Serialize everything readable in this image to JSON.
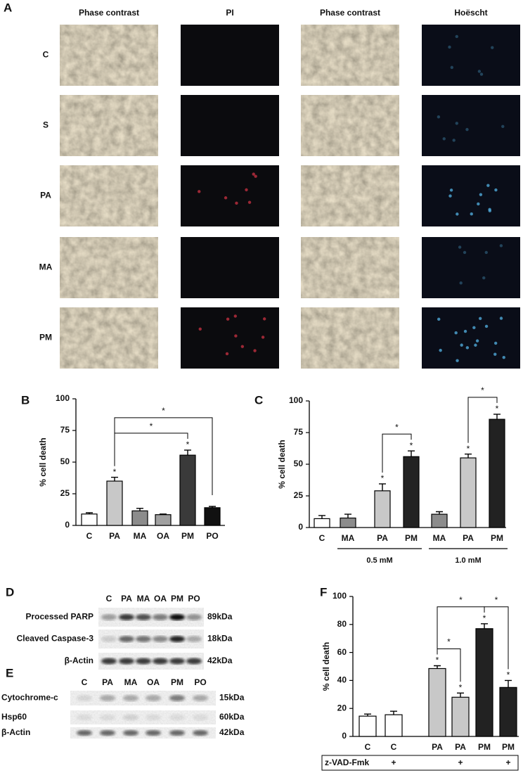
{
  "panel_a": {
    "label": "A",
    "columns": [
      "Phase contrast",
      "PI",
      "Phase contrast",
      "Hoëscht"
    ],
    "rows": [
      "C",
      "S",
      "PA",
      "MA",
      "PM"
    ]
  },
  "chart_data": [
    {
      "type": "bar",
      "panel": "B",
      "ylabel": "% cell death",
      "categories": [
        "C",
        "PA",
        "MA",
        "OA",
        "PM",
        "PO"
      ],
      "values": [
        9,
        35,
        11.5,
        8.5,
        55.5,
        14
      ],
      "errors": [
        1,
        3,
        2,
        0.5,
        4,
        1
      ],
      "colors": [
        "#ffffff",
        "#c8c8c8",
        "#8c8c8c",
        "#a0a0a0",
        "#3a3a3a",
        "#111111"
      ],
      "ylim": [
        0,
        100
      ],
      "yticks": [
        0,
        25,
        50,
        75,
        100
      ],
      "stars": {
        "label": "*",
        "indices": [
          1,
          4
        ]
      },
      "brackets": [
        {
          "from": 1,
          "to": 4,
          "label": "*"
        },
        {
          "from": 1,
          "to": 5,
          "label": "*"
        }
      ]
    },
    {
      "type": "bar",
      "panel": "C",
      "ylabel": "% cell death",
      "categories": [
        "C",
        "MA",
        "PA",
        "PM",
        "MA",
        "PA",
        "PM"
      ],
      "values": [
        7,
        7.5,
        29,
        56,
        10.5,
        55,
        85.5
      ],
      "errors": [
        2.5,
        3,
        5.5,
        4.5,
        2,
        3,
        4
      ],
      "colors": [
        "#ffffff",
        "#8c8c8c",
        "#c8c8c8",
        "#222222",
        "#8c8c8c",
        "#c8c8c8",
        "#222222"
      ],
      "ylim": [
        0,
        100
      ],
      "yticks": [
        0,
        25,
        50,
        75,
        100
      ],
      "stars": {
        "label": "*",
        "indices": [
          2,
          3,
          5,
          6
        ]
      },
      "brackets": [
        {
          "from": 2,
          "to": 3,
          "label": "*"
        },
        {
          "from": 5,
          "to": 6,
          "label": "*"
        }
      ],
      "groups": [
        {
          "label": "0.5 mM",
          "from": 1,
          "to": 3
        },
        {
          "label": "1.0 mM",
          "from": 4,
          "to": 6
        }
      ]
    },
    {
      "type": "bar",
      "panel": "F",
      "ylabel": "% cell death",
      "categories": [
        "C",
        "C",
        "PA",
        "PA",
        "PM",
        "PM"
      ],
      "values": [
        14.5,
        15.5,
        48.5,
        28,
        77,
        35
      ],
      "errors": [
        1.5,
        2.5,
        2,
        3,
        3.5,
        5
      ],
      "colors": [
        "#ffffff",
        "#ffffff",
        "#c8c8c8",
        "#c8c8c8",
        "#222222",
        "#222222"
      ],
      "ylim": [
        0,
        100
      ],
      "yticks": [
        0,
        20,
        40,
        60,
        80,
        100
      ],
      "stars": {
        "label": "*",
        "indices": [
          2,
          3,
          4,
          5
        ]
      },
      "brackets": [
        {
          "from": 2,
          "to": 3,
          "label": "*"
        },
        {
          "from": 2,
          "to": 4,
          "label": "*"
        },
        {
          "from": 4,
          "to": 5,
          "label": "*"
        }
      ],
      "treatment": {
        "label": "z-VAD-Fmk",
        "marks": [
          null,
          "+",
          null,
          "+",
          null,
          "+"
        ]
      }
    }
  ],
  "blots": [
    {
      "panel": "D",
      "lanes": [
        "C",
        "PA",
        "MA",
        "OA",
        "PM",
        "PO"
      ],
      "rows": [
        {
          "name": "Processed PARP",
          "size": "89kDa"
        },
        {
          "name": "Cleaved Caspase-3",
          "size": "18kDa"
        },
        {
          "name": "β-Actin",
          "size": "42kDa"
        }
      ]
    },
    {
      "panel": "E",
      "lanes": [
        "C",
        "PA",
        "MA",
        "OA",
        "PM",
        "PO"
      ],
      "rows": [
        {
          "name": "Cytochrome-c",
          "size": "15kDa"
        },
        {
          "name": "Hsp60",
          "size": "60kDa"
        },
        {
          "name": "β-Actin",
          "size": "42kDa"
        }
      ]
    }
  ]
}
